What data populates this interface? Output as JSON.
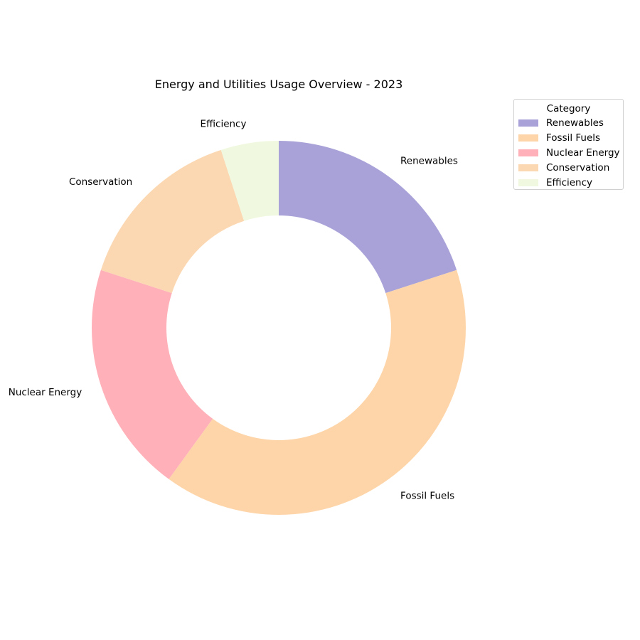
{
  "chart_data": {
    "type": "pie",
    "title": "Energy and Utilities Usage Overview - 2023",
    "donut": true,
    "start": "top",
    "direction": "clockwise",
    "categories": [
      "Renewables",
      "Fossil Fuels",
      "Nuclear Energy",
      "Conservation",
      "Efficiency"
    ],
    "values": [
      20,
      40,
      20,
      15,
      5
    ],
    "colors": [
      "#a8a2d8",
      "#fed5a8",
      "#ffb0b8",
      "#fbd8b2",
      "#f0f9e0"
    ],
    "legend": {
      "title": "Category",
      "placement": "top-right",
      "entries": [
        "Renewables",
        "Fossil Fuels",
        "Nuclear Energy",
        "Conservation",
        "Efficiency"
      ]
    }
  }
}
